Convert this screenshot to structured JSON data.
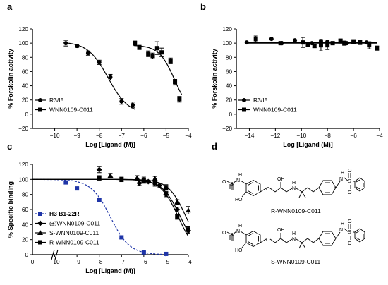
{
  "panels": {
    "a": "a",
    "b": "b",
    "c": "c",
    "d": "d"
  },
  "chart_data": [
    {
      "id": "a",
      "type": "scatter",
      "xlabel": "Log [Ligand (M)]",
      "ylabel": "% Forskolin activity",
      "xlim": [
        -11,
        -4
      ],
      "ylim": [
        -20,
        120
      ],
      "xticks": [
        -10,
        -9,
        -8,
        -7,
        -6,
        -5,
        -4
      ],
      "yticks": [
        -20,
        0,
        20,
        40,
        60,
        80,
        100,
        120
      ],
      "legend": "bottom-left",
      "series": [
        {
          "name": "R3/I5",
          "marker": "circle",
          "color": "#000000",
          "x": [
            -9.5,
            -9.0,
            -8.5,
            -8.0,
            -7.5,
            -7.0,
            -6.5
          ],
          "y": [
            100,
            96,
            86,
            73,
            52,
            18,
            13
          ],
          "err": [
            4,
            2,
            3,
            3,
            4,
            4,
            4
          ],
          "fit": {
            "top": 102,
            "bottom": 0,
            "logec50": -7.6,
            "hill": 0.95,
            "from": -9.6,
            "to": -6.4
          }
        },
        {
          "name": "WNN0109-C011",
          "marker": "square",
          "color": "#000000",
          "x": [
            -6.4,
            -6.2,
            -5.8,
            -5.6,
            -5.4,
            -5.2,
            -4.8,
            -4.6,
            -4.4
          ],
          "y": [
            100,
            94,
            85,
            82,
            93,
            87,
            75,
            45,
            21
          ],
          "err": [
            3,
            3,
            4,
            4,
            9,
            6,
            4,
            4,
            4
          ],
          "fit": {
            "top": 97,
            "bottom": 0,
            "logec50": -4.62,
            "hill": 1.25,
            "from": -6.45,
            "to": -4.3
          }
        }
      ]
    },
    {
      "id": "b",
      "type": "scatter",
      "xlabel": "Log [Ligand (M)]",
      "ylabel": "% Forskolin activity",
      "xlim": [
        -15,
        -4
      ],
      "ylim": [
        -20,
        120
      ],
      "xticks": [
        -14,
        -12,
        -10,
        -8,
        -6,
        -4
      ],
      "yticks": [
        -20,
        0,
        20,
        40,
        60,
        80,
        100,
        120
      ],
      "legend": "bottom-left",
      "series": [
        {
          "name": "R3/I5",
          "marker": "circle",
          "color": "#000000",
          "x": [
            -14.2,
            -12.3,
            -11.5,
            -10.5,
            -9.2,
            -8.5,
            -8.0,
            -6.5,
            -5.0
          ],
          "y": [
            101,
            106,
            100,
            104,
            100,
            103,
            102,
            100,
            101
          ],
          "err": [
            0,
            0,
            0,
            0,
            0,
            0,
            0,
            0,
            0
          ],
          "fit": {
            "type": "flat",
            "level": 101
          }
        },
        {
          "name": "WNN0109-C011",
          "marker": "square",
          "color": "#000000",
          "x": [
            -13.5,
            -11.6,
            -9.9,
            -9.5,
            -9.0,
            -8.5,
            -8.0,
            -7.6,
            -7.0,
            -6.7,
            -6.0,
            -5.5,
            -4.8,
            -4.2
          ],
          "y": [
            106,
            100,
            101,
            98,
            96,
            97,
            97,
            100,
            103,
            100,
            102,
            101,
            97,
            93
          ],
          "err": [
            4,
            2,
            7,
            3,
            2,
            8,
            6,
            2,
            3,
            3,
            3,
            3,
            5,
            3
          ],
          "fit": {
            "type": "flat",
            "level": 100
          }
        }
      ]
    },
    {
      "id": "c",
      "type": "scatter",
      "xlabel": "Log [Ligand (M)]",
      "ylabel": "% Specific binding",
      "xlim": [
        -11,
        -4
      ],
      "ylim": [
        0,
        120
      ],
      "xticks": [
        -10,
        -9,
        -8,
        -7,
        -6,
        -5,
        -4
      ],
      "xtick_zero": "0",
      "yticks": [
        0,
        20,
        40,
        60,
        80,
        100,
        120
      ],
      "legend": "bottom-left",
      "series": [
        {
          "name": "H3 B1-22R",
          "marker": "square",
          "color": "#1f35a8",
          "dashed": true,
          "x": [
            -9.5,
            -9.0,
            -8.0,
            -7.0,
            -6.0,
            -5.0
          ],
          "y": [
            96,
            88,
            73,
            23,
            3,
            1
          ],
          "err": [
            0,
            0,
            2,
            2,
            1,
            0
          ],
          "fit": {
            "top": 100,
            "bottom": 0,
            "logec50": -7.5,
            "hill": 1.0,
            "from": -11,
            "to": -5
          }
        },
        {
          "name": "(±)WNN0109-C011",
          "marker": "diamond",
          "color": "#000000",
          "x": [
            -8.0,
            -6.2,
            -5.8,
            -5.3,
            -5.0,
            -4.5,
            -4.0
          ],
          "y": [
            113,
            95,
            97,
            92,
            80,
            60,
            32
          ],
          "err": [
            4,
            3,
            2,
            3,
            3,
            3,
            4
          ],
          "fit": {
            "top": 100,
            "bottom": 0,
            "logec50": -4.35,
            "hill": 1.05,
            "from": -11,
            "to": -4
          }
        },
        {
          "name": "S-WNN0109-C011",
          "marker": "triangle",
          "color": "#000000",
          "x": [
            -7.5,
            -6.3,
            -6.0,
            -5.5,
            -5.0,
            -4.5,
            -4.0
          ],
          "y": [
            105,
            102,
            99,
            101,
            90,
            70,
            59
          ],
          "err": [
            3,
            3,
            4,
            3,
            3,
            3,
            5
          ],
          "fit": {
            "top": 100,
            "bottom": 0,
            "logec50": -4.1,
            "hill": 1.1,
            "from": -11,
            "to": -4
          }
        },
        {
          "name": "R-WNN0109-C011",
          "marker": "square",
          "color": "#000000",
          "x": [
            -8.0,
            -7.0,
            -6.0,
            -5.5,
            -5.0,
            -4.5,
            -4.0
          ],
          "y": [
            102,
            100,
            98,
            95,
            88,
            50,
            33
          ],
          "err": [
            3,
            3,
            3,
            4,
            4,
            3,
            4
          ],
          "fit": {
            "top": 100,
            "bottom": 0,
            "logec50": -4.45,
            "hill": 1.1,
            "from": -11,
            "to": -4
          }
        }
      ]
    }
  ],
  "structures": {
    "r_label": "R-WNN0109-C011",
    "s_label": "S-WNN0109-C011",
    "atoms": {
      "nh": "H",
      "n": "N",
      "s": "S",
      "o": "O",
      "ho": "HO",
      "oh": "OH"
    }
  }
}
